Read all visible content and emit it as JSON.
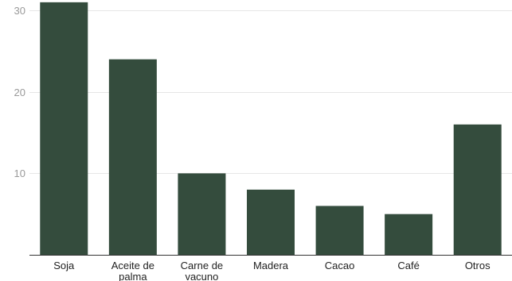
{
  "chart_data": {
    "type": "bar",
    "categories": [
      [
        "Soja"
      ],
      [
        "Aceite de",
        "palma"
      ],
      [
        "Carne de",
        "vacuno"
      ],
      [
        "Madera"
      ],
      [
        "Cacao"
      ],
      [
        "Café"
      ],
      [
        "Otros"
      ]
    ],
    "values": [
      31,
      24,
      10,
      8,
      6,
      5,
      16
    ],
    "ylim": [
      0,
      30.5
    ],
    "yticks": [
      10,
      20,
      30
    ],
    "grid": true,
    "legend": "none",
    "bar_color": "#344c3d",
    "title": "",
    "xlabel": "",
    "ylabel": ""
  }
}
